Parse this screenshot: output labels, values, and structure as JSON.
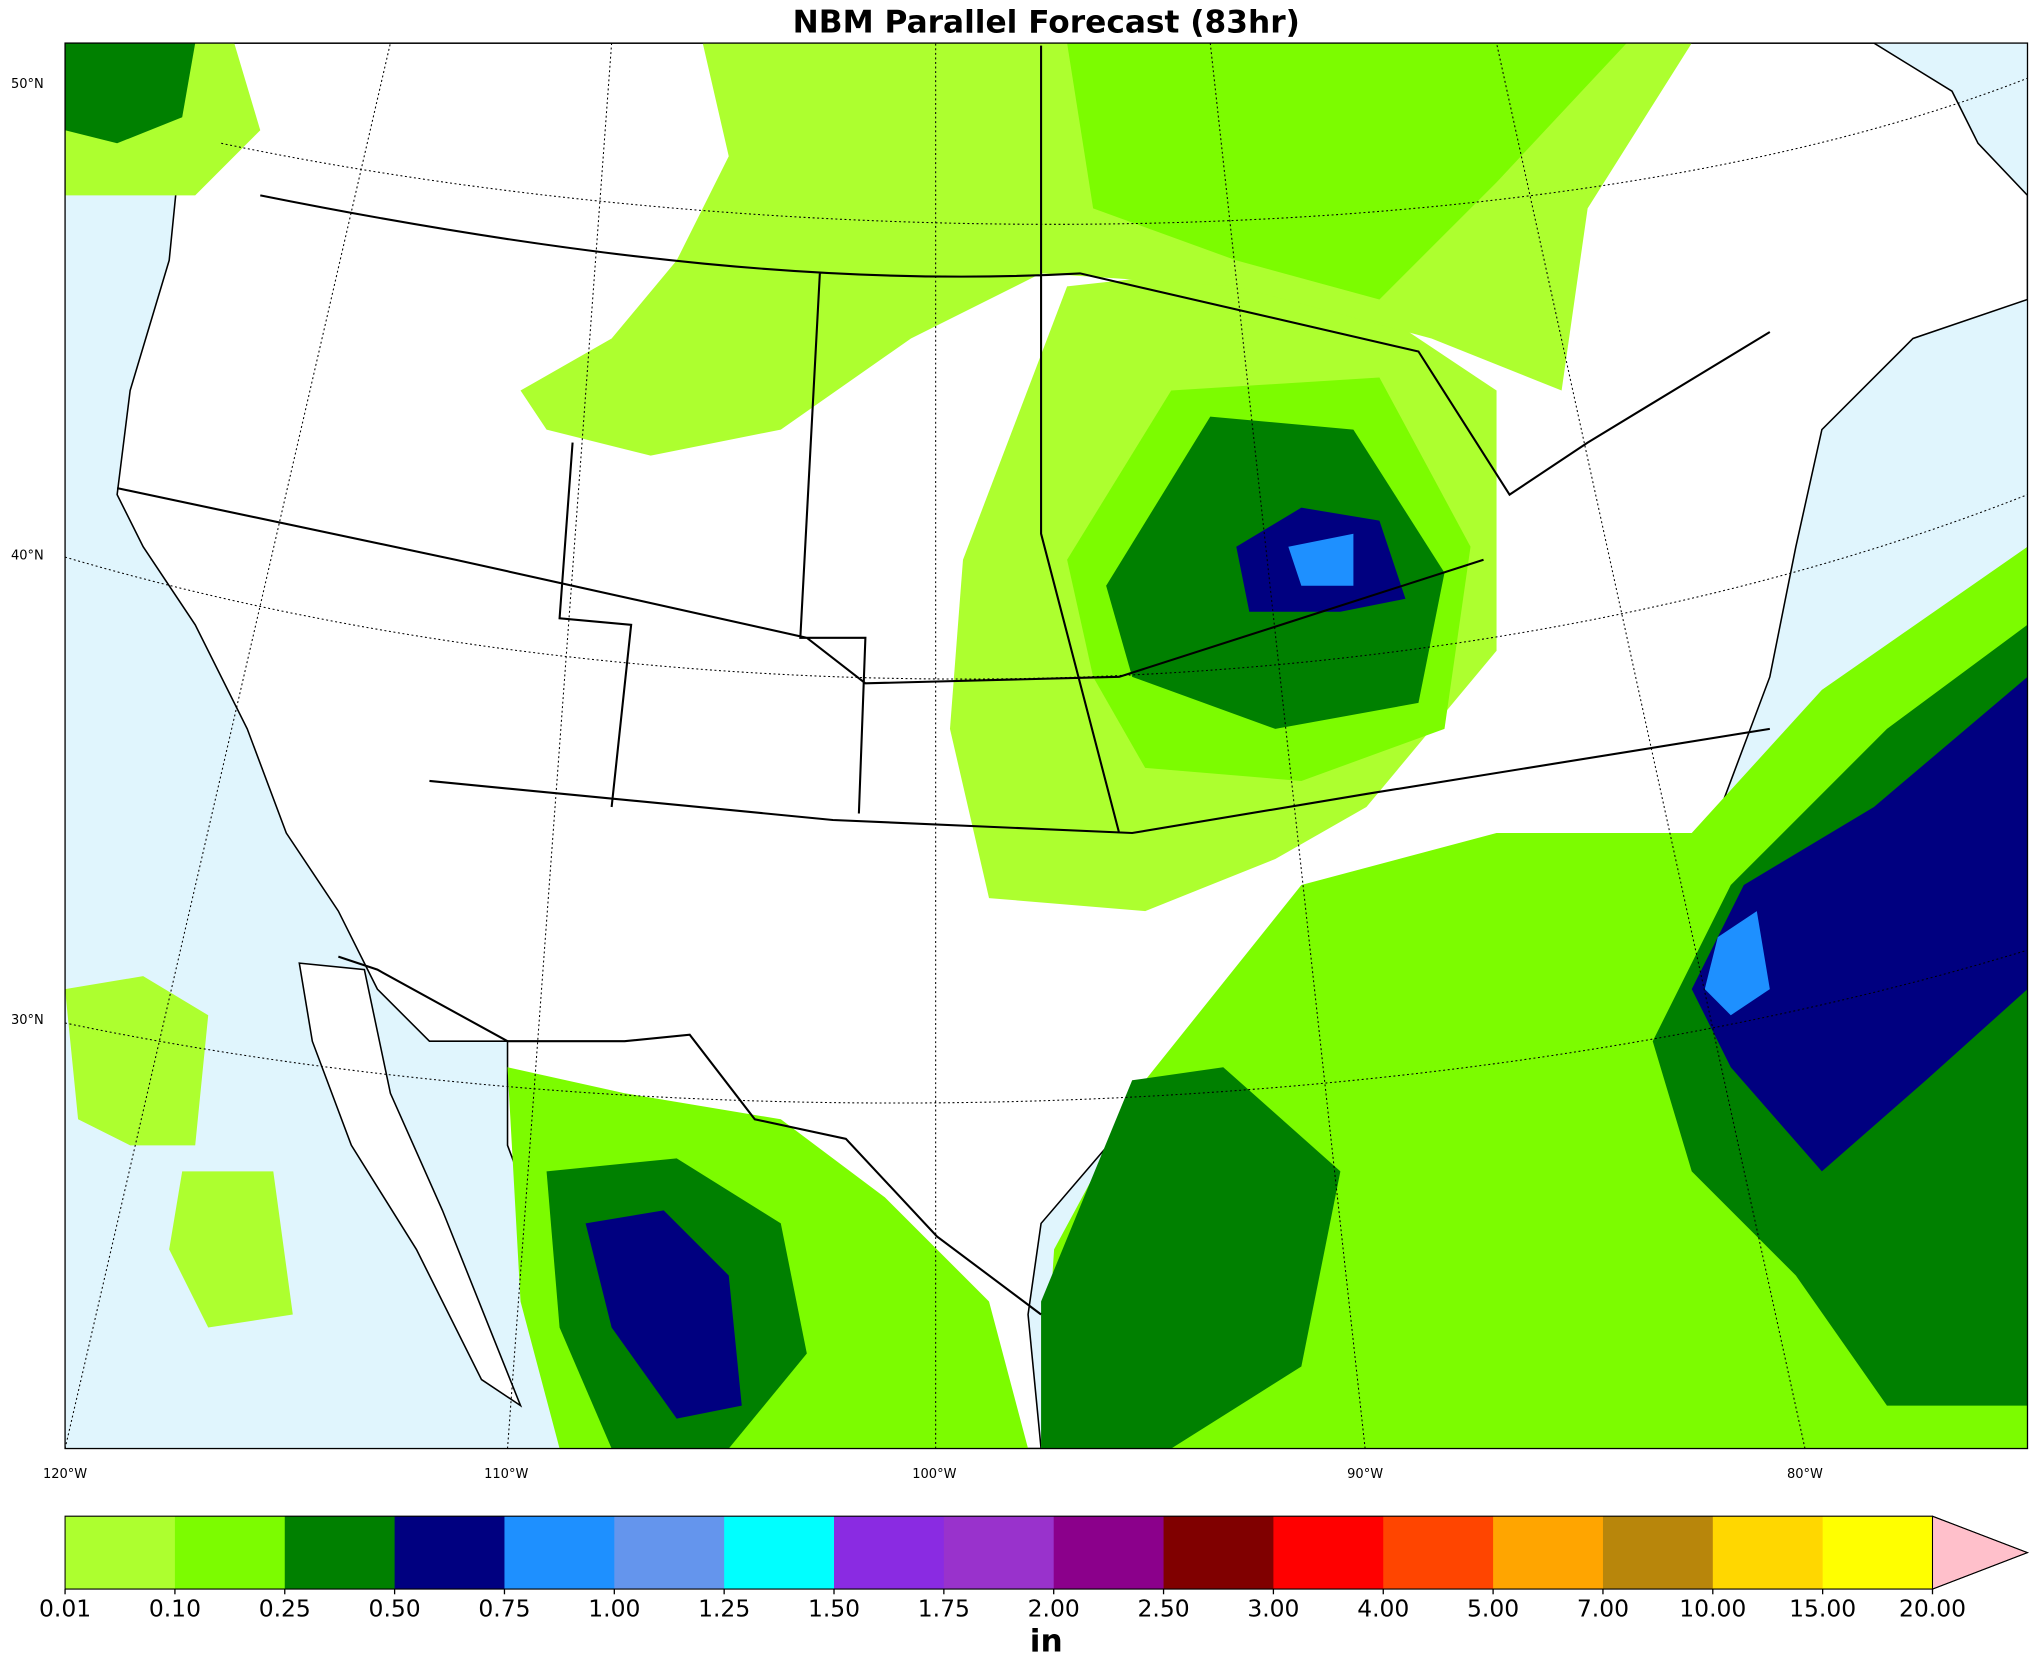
{
  "title": "NBM Parallel Forecast (83hr)",
  "lon_labels": [
    "120°W",
    "110°W",
    "100°W",
    "90°W",
    "80°W"
  ],
  "lat_labels": [
    "50°N",
    "40°N",
    "30°N"
  ],
  "colorbar": {
    "unit": "in",
    "ticks": [
      "0.01",
      "0.10",
      "0.25",
      "0.50",
      "0.75",
      "1.00",
      "1.25",
      "1.50",
      "1.75",
      "2.00",
      "2.50",
      "3.00",
      "4.00",
      "5.00",
      "7.00",
      "10.00",
      "15.00",
      "20.00"
    ],
    "colors": [
      "#adff2f",
      "#7cfc00",
      "#008000",
      "#000080",
      "#1e90ff",
      "#6495ed",
      "#00ffff",
      "#8a2be2",
      "#9932cc",
      "#8b008b",
      "#800000",
      "#ff0000",
      "#ff4500",
      "#ffa500",
      "#b8860b",
      "#ffd700",
      "#ffff00"
    ],
    "extend_color": "#ffc0cb"
  }
}
